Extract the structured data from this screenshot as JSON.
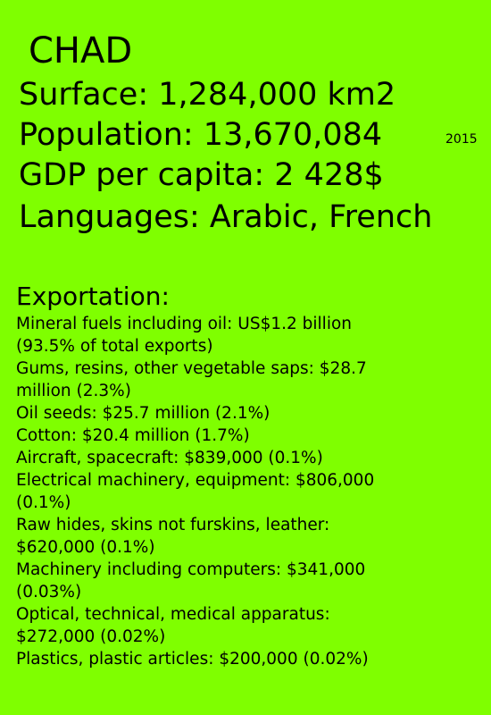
{
  "country": {
    "name": "CHAD"
  },
  "facts": {
    "surface": "Surface:  1,284,000 km2",
    "population": "Population:   13,670,084",
    "population_year": "2015",
    "gdp_per_capita": "GDP per capita:  2 428$",
    "languages": "Languages: Arabic, French"
  },
  "exportation": {
    "heading": "Exportation:",
    "items": [
      {
        "line1": "Mineral fuels including oil: US$1.2 billion",
        "line2": "(93.5% of total exports)"
      },
      {
        "line1": "Gums, resins, other vegetable saps: $28.7",
        "line2": "million (2.3%)"
      },
      {
        "line1": "Oil seeds: $25.7 million (2.1%)"
      },
      {
        "line1": "Cotton: $20.4 million (1.7%)"
      },
      {
        "line1": "Aircraft, spacecraft: $839,000 (0.1%)"
      },
      {
        "line1": "Electrical machinery, equipment: $806,000",
        "line2": "(0.1%)"
      },
      {
        "line1": "Raw hides, skins not furskins, leather:",
        "line2": "$620,000 (0.1%)"
      },
      {
        "line1": "Machinery including computers: $341,000",
        "line2": "(0.03%)"
      },
      {
        "line1": "Optical, technical, medical apparatus:",
        "line2": "$272,000 (0.02%)"
      },
      {
        "line1": "Plastics, plastic articles: $200,000 (0.02%)"
      }
    ]
  }
}
